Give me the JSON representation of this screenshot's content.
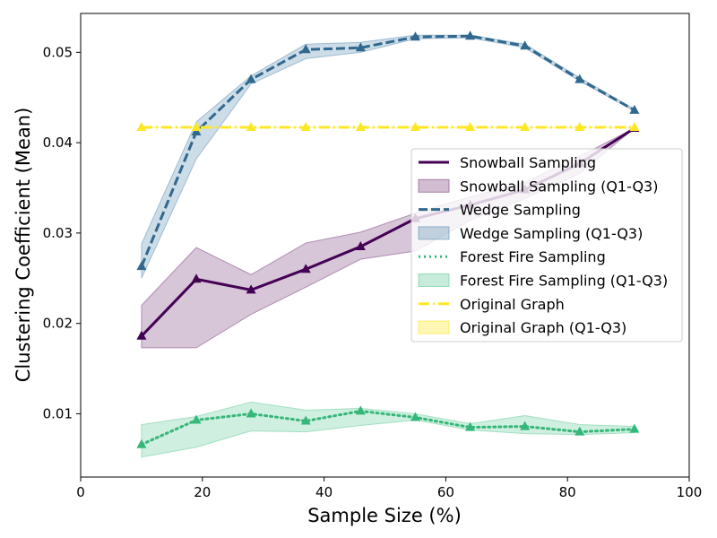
{
  "chart_data": {
    "type": "line",
    "xlabel": "Sample Size (%)",
    "ylabel": "Clustering Coefficient (Mean)",
    "xlim": [
      0,
      100
    ],
    "ylim": [
      0.003,
      0.0543
    ],
    "x_ticks": [
      0,
      20,
      40,
      60,
      80,
      100
    ],
    "y_ticks": [
      0.01,
      0.02,
      0.03,
      0.04,
      0.05
    ],
    "x_tick_labels": [
      "0",
      "20",
      "40",
      "60",
      "80",
      "100"
    ],
    "y_tick_labels": [
      "0.01",
      "0.02",
      "0.03",
      "0.04",
      "0.05"
    ],
    "grid": false,
    "legend_position": "center-right",
    "x": [
      10,
      19,
      28,
      37,
      46,
      55,
      64,
      73,
      82,
      91
    ],
    "series": [
      {
        "name": "Snowball Sampling",
        "band_name": "Snowball Sampling (Q1-Q3)",
        "color": "#440154",
        "band_color": "#7b3f7f",
        "style": "solid",
        "values": [
          0.0186,
          0.0249,
          0.0237,
          0.026,
          0.0285,
          0.0316,
          0.0331,
          0.0348,
          0.0377,
          0.0416
        ],
        "q1": [
          0.0173,
          0.0173,
          0.021,
          0.024,
          0.0271,
          0.028,
          0.0314,
          0.0338,
          0.0366,
          0.0416
        ],
        "q3": [
          0.022,
          0.0284,
          0.0254,
          0.0289,
          0.0301,
          0.0322,
          0.034,
          0.0356,
          0.0385,
          0.0416
        ]
      },
      {
        "name": "Wedge Sampling",
        "band_name": "Wedge Sampling (Q1-Q3)",
        "color": "#31688e",
        "band_color": "#5b8db3",
        "style": "dashed",
        "values": [
          0.0263,
          0.0412,
          0.047,
          0.0503,
          0.0505,
          0.0517,
          0.0518,
          0.0507,
          0.047,
          0.0436
        ],
        "q1": [
          0.025,
          0.0382,
          0.0465,
          0.0493,
          0.05,
          0.0515,
          0.0516,
          0.0505,
          0.0468,
          0.0435
        ],
        "q3": [
          0.0288,
          0.0423,
          0.0474,
          0.0509,
          0.0511,
          0.0519,
          0.0519,
          0.0509,
          0.0472,
          0.0437
        ]
      },
      {
        "name": "Forest Fire Sampling",
        "band_name": "Forest Fire Sampling (Q1-Q3)",
        "color": "#35b779",
        "band_color": "#5fc998",
        "style": "dotted",
        "values": [
          0.0066,
          0.0093,
          0.01,
          0.0092,
          0.0103,
          0.0096,
          0.0085,
          0.0086,
          0.008,
          0.0083
        ],
        "q1": [
          0.0052,
          0.0063,
          0.0081,
          0.008,
          0.0087,
          0.0093,
          0.0082,
          0.0078,
          0.0077,
          0.0079
        ],
        "q3": [
          0.0088,
          0.0097,
          0.0113,
          0.0104,
          0.0106,
          0.01,
          0.0089,
          0.0098,
          0.0088,
          0.0086
        ]
      },
      {
        "name": "Original Graph",
        "band_name": "Original Graph (Q1-Q3)",
        "color": "#fde725",
        "band_color": "#fde725",
        "style": "dashdot",
        "values": [
          0.0417,
          0.0417,
          0.0417,
          0.0417,
          0.0417,
          0.0417,
          0.0417,
          0.0417,
          0.0417,
          0.0417
        ],
        "q1": [
          0.0417,
          0.0417,
          0.0417,
          0.0417,
          0.0417,
          0.0417,
          0.0417,
          0.0417,
          0.0417,
          0.0417
        ],
        "q3": [
          0.0417,
          0.0417,
          0.0417,
          0.0417,
          0.0417,
          0.0417,
          0.0417,
          0.0417,
          0.0417,
          0.0417
        ]
      }
    ]
  }
}
